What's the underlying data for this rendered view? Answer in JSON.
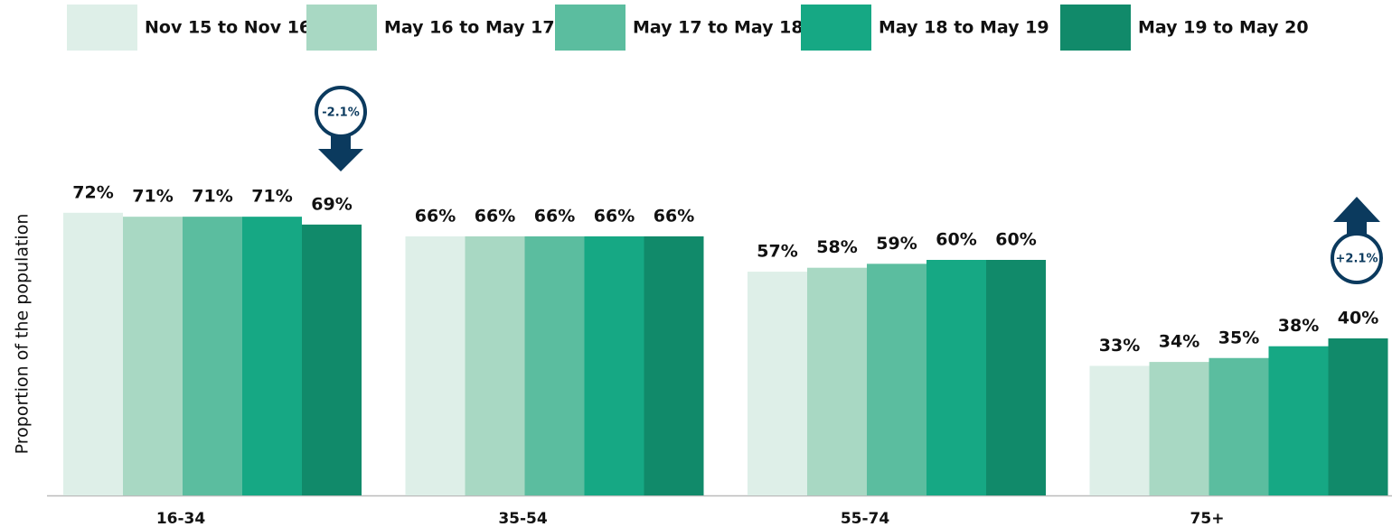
{
  "chart_data": {
    "type": "bar",
    "y_label": "Proportion of the population",
    "categories": [
      "16-34",
      "35-54",
      "55-74",
      "75+"
    ],
    "ylim": [
      0,
      100
    ],
    "series": [
      {
        "name": "Nov 15 to Nov 16",
        "color": "#deefe8",
        "values": [
          72,
          66,
          57,
          33
        ],
        "value_labels": [
          "72%",
          "66%",
          "57%",
          "33%"
        ]
      },
      {
        "name": "May 16 to May 17",
        "color": "#a8d8c3",
        "values": [
          71,
          66,
          58,
          34
        ],
        "value_labels": [
          "71%",
          "66%",
          "58%",
          "34%"
        ]
      },
      {
        "name": "May 17 to May 18",
        "color": "#5bbd9f",
        "values": [
          71,
          66,
          59,
          35
        ],
        "value_labels": [
          "71%",
          "66%",
          "59%",
          "35%"
        ]
      },
      {
        "name": "May 18 to May 19",
        "color": "#16a884",
        "values": [
          71,
          66,
          60,
          38
        ],
        "value_labels": [
          "71%",
          "66%",
          "60%",
          "38%"
        ]
      },
      {
        "name": "May 19 to May 20",
        "color": "#118a6a",
        "values": [
          69,
          66,
          60,
          40
        ],
        "value_labels": [
          "69%",
          "66%",
          "60%",
          "40%"
        ]
      }
    ],
    "annotations": [
      {
        "text": "-2.1%"
      },
      {
        "text": "+2.1%"
      }
    ]
  }
}
